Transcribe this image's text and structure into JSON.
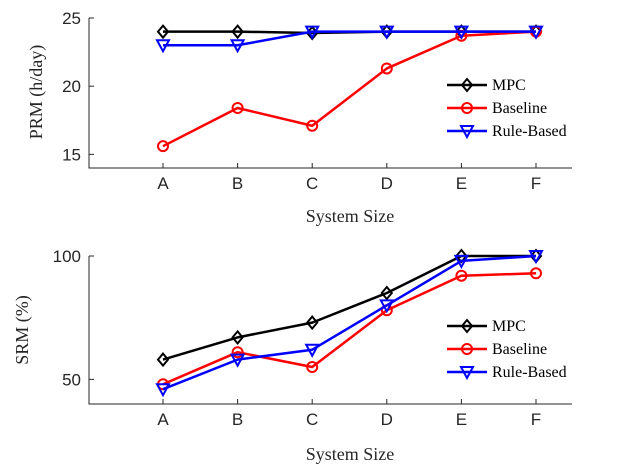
{
  "chart_data": [
    {
      "type": "line",
      "categories": [
        "A",
        "B",
        "C",
        "D",
        "E",
        "F"
      ],
      "xlabel": "System Size",
      "ylabel": "PRM (h/day)",
      "ylim": [
        14,
        25
      ],
      "yticks": [
        "15",
        "20",
        "25"
      ],
      "legend": "center-right",
      "grid": false,
      "series": [
        {
          "name": "MPC",
          "values": [
            24,
            24,
            23.9,
            24,
            24,
            24
          ],
          "color": "#000000",
          "marker": "diamond"
        },
        {
          "name": "Baseline",
          "values": [
            15.6,
            18.4,
            17.1,
            21.3,
            23.7,
            24
          ],
          "color": "#ff0000",
          "marker": "circle"
        },
        {
          "name": "Rule-Based",
          "values": [
            23,
            23,
            24,
            24,
            24,
            24
          ],
          "color": "#0000ff",
          "marker": "triangle-down"
        }
      ]
    },
    {
      "type": "line",
      "categories": [
        "A",
        "B",
        "C",
        "D",
        "E",
        "F"
      ],
      "xlabel": "System Size",
      "ylabel": "SRM (%)",
      "ylim": [
        40,
        100
      ],
      "yticks": [
        "50",
        "100"
      ],
      "legend": "center-right",
      "grid": false,
      "series": [
        {
          "name": "MPC",
          "values": [
            58,
            67,
            73,
            85,
            100,
            100
          ],
          "color": "#000000",
          "marker": "diamond"
        },
        {
          "name": "Baseline",
          "values": [
            48,
            61,
            55,
            78,
            92,
            93
          ],
          "color": "#ff0000",
          "marker": "circle"
        },
        {
          "name": "Rule-Based",
          "values": [
            46,
            58,
            62,
            80,
            98,
            100
          ],
          "color": "#0000ff",
          "marker": "triangle-down"
        }
      ]
    }
  ]
}
